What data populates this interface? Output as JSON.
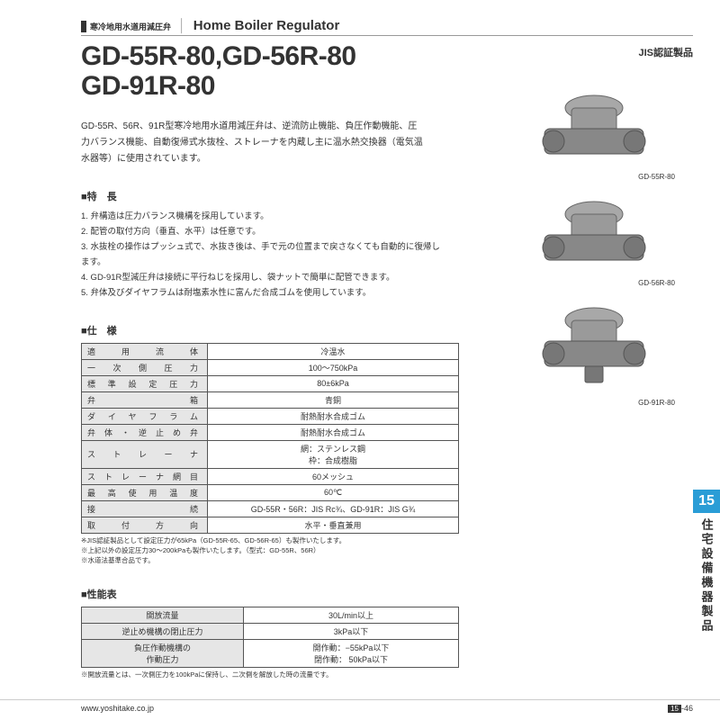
{
  "header": {
    "jp_category": "寒冷地用水道用減圧弁",
    "en_category": "Home Boiler Regulator"
  },
  "title": {
    "line1": "GD-55R-80,GD-56R-80",
    "line2": "GD-91R-80",
    "jis": "JIS認証製品"
  },
  "intro": "GD-55R、56R、91R型寒冷地用水道用減圧弁は、逆流防止機能、負圧作動機能、圧力バランス機能、自動復帰式水抜栓、ストレーナを内蔵し主に温水熱交換器（電気温水器等）に使用されています。",
  "features": {
    "heading": "■特　長",
    "items": [
      "1. 弁構造は圧力バランス機構を採用しています。",
      "2. 配管の取付方向（垂直、水平）は任意です。",
      "3. 水抜栓の操作はプッシュ式で、水抜き後は、手で元の位置まで戻さなくても自動的に復帰します。",
      "4. GD-91R型減圧弁は接続に平行ねじを採用し、袋ナットで簡単に配管できます。",
      "5. 弁体及びダイヤフラムは耐塩素水性に富んだ合成ゴムを使用しています。"
    ]
  },
  "spec": {
    "heading": "■仕　様",
    "rows": [
      {
        "label": "適用流体",
        "value": "冷温水"
      },
      {
        "label": "一次側圧力",
        "value": "100～750kPa"
      },
      {
        "label": "標準設定圧力",
        "value": "80±6kPa"
      },
      {
        "label": "弁箱",
        "value": "青銅"
      },
      {
        "label": "ダイヤフラム",
        "value": "耐熱耐水合成ゴム"
      },
      {
        "label": "弁体・逆止め弁",
        "value": "耐熱耐水合成ゴム"
      },
      {
        "label": "ストレーナ",
        "value": "網：ステンレス鋼\n枠：合成樹脂"
      },
      {
        "label": "ストレーナ網目",
        "value": "60メッシュ"
      },
      {
        "label": "最高使用温度",
        "value": "60℃"
      },
      {
        "label": "接続",
        "value": "GD-55R・56R：JIS Rc¾、GD-91R：JIS G¾"
      },
      {
        "label": "取付方向",
        "value": "水平・垂直兼用"
      }
    ],
    "notes": [
      "※JIS認証製品として設定圧力が65kPa（GD-55R-65、GD-56R-65）も製作いたします。",
      "※上記以外の設定圧力30～200kPaも製作いたします。（型式：GD-55R、56R）",
      "※水道法基準合品です。"
    ]
  },
  "perf": {
    "heading": "■性能表",
    "rows": [
      {
        "label": "開放流量",
        "value": "30L/min以上"
      },
      {
        "label": "逆止め機構の閉止圧力",
        "value": "3kPa以下"
      },
      {
        "label": "負圧作動機構の\n作動圧力",
        "value": "開作動：−55kPa以下\n閉作動：  50kPa以下"
      }
    ],
    "note": "※開放流量とは、一次側圧力を100kPaに保持し、二次側を解放した時の流量です。"
  },
  "products": [
    {
      "label": "GD-55R-80"
    },
    {
      "label": "GD-56R-80"
    },
    {
      "label": "GD-91R-80"
    }
  ],
  "sidebar": {
    "number": "15",
    "text": "住宅設備機器製品"
  },
  "footer": {
    "url": "www.yoshitake.co.jp",
    "section": "15",
    "page": "-46"
  },
  "colors": {
    "accent": "#2a9dd6",
    "table_header": "#e6e6e6",
    "text": "#333333"
  }
}
